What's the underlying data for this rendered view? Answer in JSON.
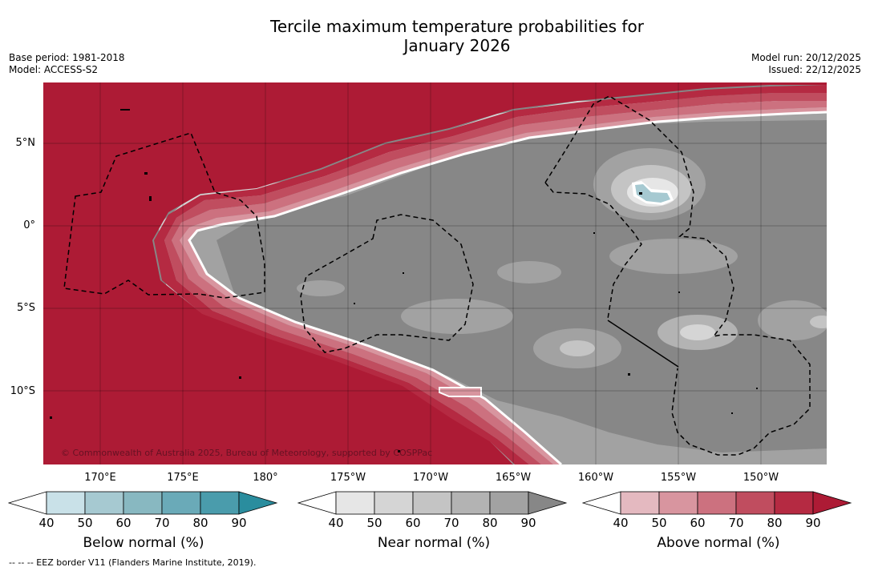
{
  "title_line1": "Tercile maximum temperature probabilities for",
  "title_line2": "January 2026",
  "base_period": "Base period: 1981-2018",
  "model": "Model: ACCESS-S2",
  "model_run": "Model run: 20/12/2025",
  "issued": "Issued: 22/12/2025",
  "copyright": "© Commonwealth of Australia 2025, Bureau of Meteorology, supported by COSPPac",
  "footnote": "--  --  -- EEZ border V11 (Flanders Marine Institute, 2019).",
  "lat_labels": [
    "5°N",
    "0°",
    "5°S",
    "10°S"
  ],
  "lon_labels": [
    "170°E",
    "175°E",
    "180°",
    "175°W",
    "170°W",
    "165°W",
    "160°W",
    "155°W",
    "150°W"
  ],
  "colorbars": [
    {
      "title": "Below normal (%)",
      "ticks": [
        "40",
        "50",
        "60",
        "70",
        "80",
        "90"
      ],
      "colors": [
        "#ffffff",
        "#c9e1e8",
        "#a6c9d1",
        "#88b8c1",
        "#6aaab8",
        "#4a9cac",
        "#2a8d9e"
      ]
    },
    {
      "title": "Near normal (%)",
      "ticks": [
        "40",
        "50",
        "60",
        "70",
        "80",
        "90"
      ],
      "colors": [
        "#ffffff",
        "#e6e6e6",
        "#d5d5d5",
        "#c4c4c4",
        "#b3b3b3",
        "#a2a2a2",
        "#878787"
      ]
    },
    {
      "title": "Above normal (%)",
      "ticks": [
        "40",
        "50",
        "60",
        "70",
        "80",
        "90"
      ],
      "colors": [
        "#ffffff",
        "#e4b9c0",
        "#d8959f",
        "#cc717f",
        "#c04d5f",
        "#b52a42",
        "#ad1b35"
      ]
    }
  ]
}
